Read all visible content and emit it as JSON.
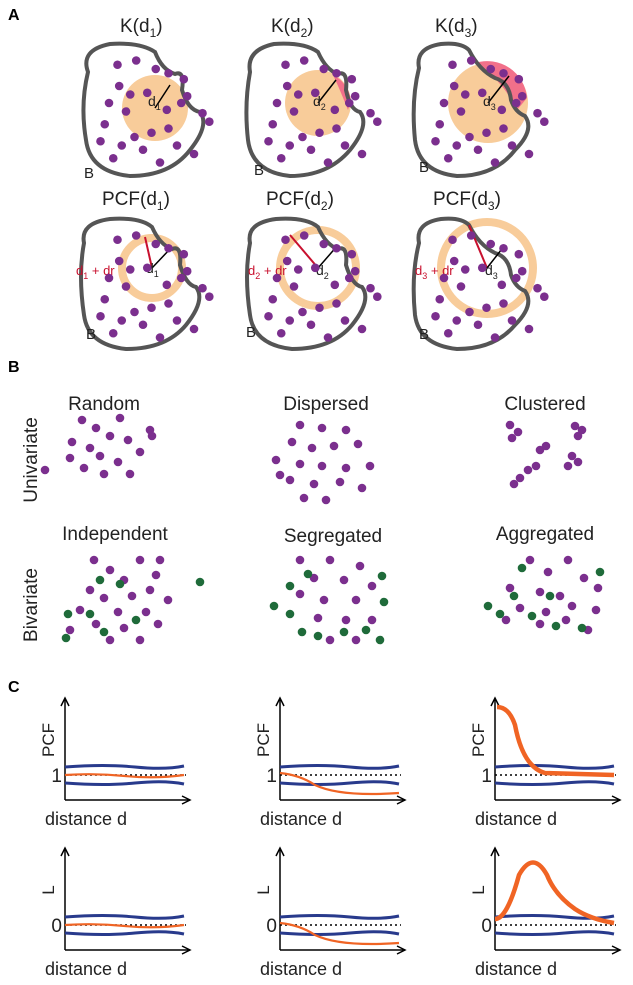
{
  "panels": {
    "A": {
      "letter": "A",
      "k_titles": [
        "K(d",
        "K(d",
        "K(d"
      ],
      "pcf_titles": [
        "PCF(d",
        "PCF(d",
        "PCF(d"
      ],
      "subs": [
        "1",
        "2",
        "3"
      ],
      "region_label": "B",
      "radius_label": "d",
      "shell_label_prefix": "d",
      "shell_label_suffix": " + dr"
    },
    "B": {
      "letter": "B",
      "row_labels": [
        "Univariate",
        "Bivariate"
      ],
      "univariate_titles": [
        "Random",
        "Dispersed",
        "Clustered"
      ],
      "bivariate_titles": [
        "Independent",
        "Segregated",
        "Aggregated"
      ]
    },
    "C": {
      "letter": "C",
      "x_label": "distance d",
      "pcf_y_label": "PCF",
      "l_y_label": "L",
      "pcf_ref": "1",
      "l_ref": "0"
    }
  },
  "colors": {
    "point_purple": "#7b2f8e",
    "point_green": "#1f6b3a",
    "region_outline": "#555555",
    "disk_fill": "#f8cc9a",
    "overlap_fill": "#f2708a",
    "envelope_blue": "#283a8c",
    "observed_orange": "#f06424",
    "label_red": "#c8102e"
  }
}
